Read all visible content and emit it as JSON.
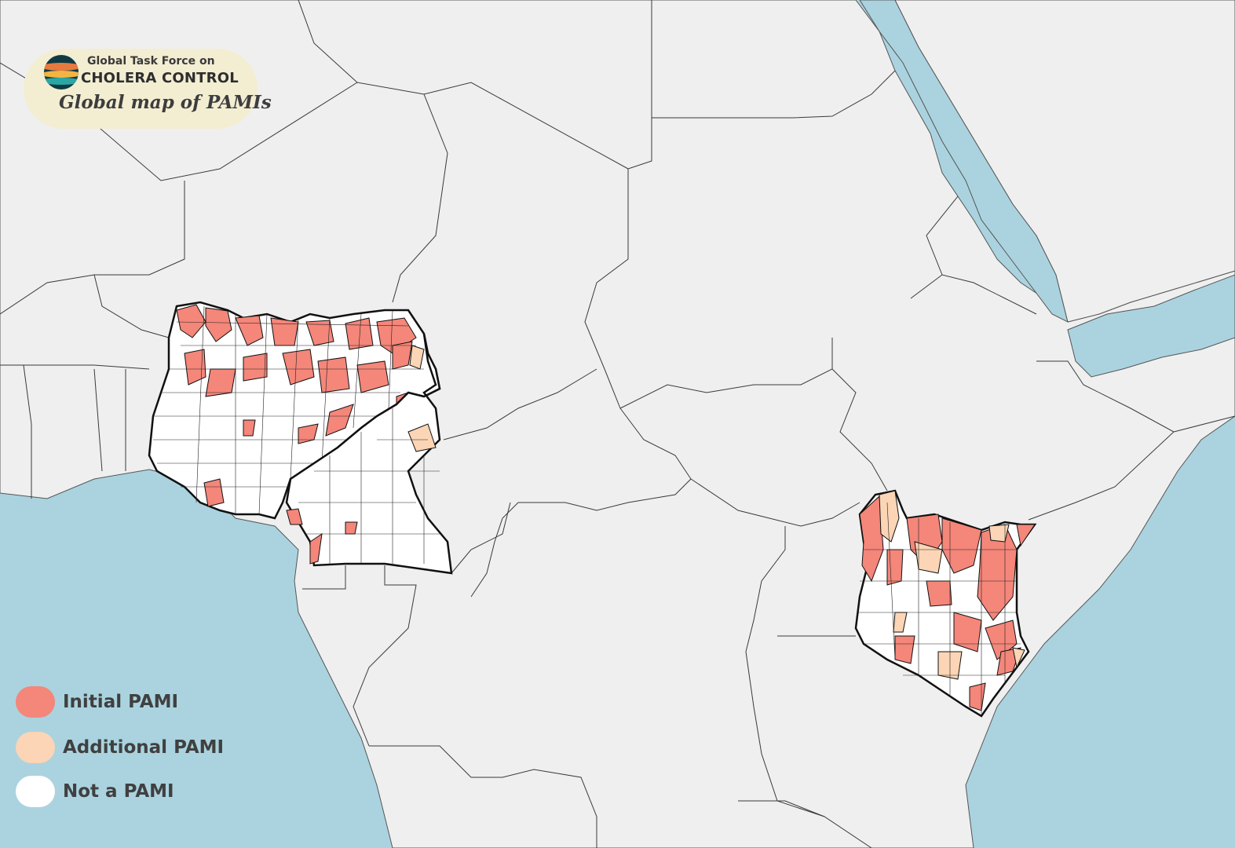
{
  "header": {
    "org_line1": "Global Task Force on",
    "org_line2": "CHOLERA CONTROL",
    "title": "Global map of PAMIs",
    "logo_icon": "gtfcc-logo-icon"
  },
  "colors": {
    "ocean": "#aad3df",
    "land": "#efefef",
    "border": "#333333",
    "initial_pami": "#f4867a",
    "additional_pami": "#fbd5b5",
    "not_pami": "#ffffff"
  },
  "legend": [
    {
      "label": "Initial PAMI",
      "color": "#f4867a"
    },
    {
      "label": "Additional PAMI",
      "color": "#fbd5b5"
    },
    {
      "label": "Not a PAMI",
      "color": "#ffffff"
    }
  ]
}
